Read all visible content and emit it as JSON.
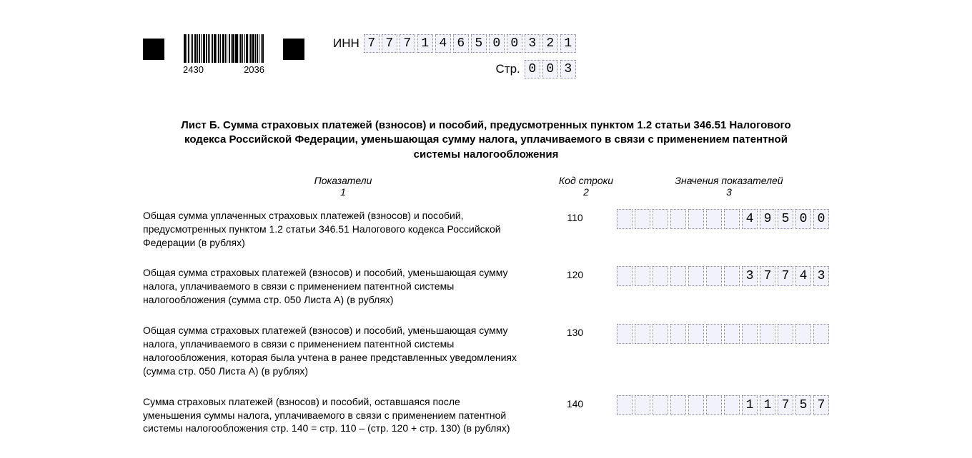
{
  "header": {
    "barcode_numbers": [
      "2430",
      "2036"
    ],
    "inn_label": "ИНН",
    "inn_digits": [
      "7",
      "7",
      "7",
      "1",
      "4",
      "6",
      "5",
      "0",
      "0",
      "3",
      "2",
      "1"
    ],
    "page_label": "Стр.",
    "page_digits": [
      "0",
      "0",
      "3"
    ]
  },
  "title": "Лист Б. Сумма страховых платежей (взносов) и пособий, предусмотренных пунктом 1.2 статьи 346.51 Налогового кодекса Российской Федерации, уменьшающая сумму налога, уплачиваемого в связи с применением патентной системы налогообложения",
  "columns": {
    "c1": "Показатели",
    "c1_sub": "1",
    "c2": "Код строки",
    "c2_sub": "2",
    "c3": "Значения показателей",
    "c3_sub": "3"
  },
  "value_cell_count": 12,
  "rows": [
    {
      "desc": "Общая сумма уплаченных страховых платежей (взносов) и пособий, предусмотренных пунктом 1.2 статьи 346.51 Налогового кодекса Российской Федерации (в рублях)",
      "code": "110",
      "value_digits": [
        "",
        "",
        "",
        "",
        "",
        "",
        "",
        "4",
        "9",
        "5",
        "0",
        "0"
      ]
    },
    {
      "desc": "Общая сумма страховых платежей (взносов) и пособий, уменьшающая сумму налога, уплачиваемого в связи с применением патентной системы налогообложения (сумма стр. 050 Листа А) (в рублях)",
      "code": "120",
      "value_digits": [
        "",
        "",
        "",
        "",
        "",
        "",
        "",
        "3",
        "7",
        "7",
        "4",
        "3"
      ]
    },
    {
      "desc": "Общая сумма страховых платежей (взносов) и пособий, уменьшающая сумму налога, уплачиваемого в связи с применением патентной системы налогообложения, которая была учтена в ранее представленных уведомлениях (сумма стр. 050 Листа А) (в рублях)",
      "code": "130",
      "value_digits": [
        "",
        "",
        "",
        "",
        "",
        "",
        "",
        "",
        "",
        "",
        "",
        ""
      ]
    },
    {
      "desc": "Сумма страховых платежей (взносов) и пособий, оставшаяся после уменьшения суммы налога, уплачиваемого в связи с применением патентной системы налогообложения стр. 140 = стр. 110 – (стр. 120 + стр. 130) (в рублях)",
      "code": "140",
      "value_digits": [
        "",
        "",
        "",
        "",
        "",
        "",
        "",
        "1",
        "1",
        "7",
        "5",
        "7"
      ]
    }
  ],
  "style": {
    "cell_bg": "#f2f2fa",
    "cell_border": "#8a8aa8",
    "text_color": "#000000",
    "background": "#ffffff",
    "barcode_widths": [
      3,
      1,
      2,
      1,
      1,
      3,
      1,
      2,
      1,
      3,
      2,
      1,
      1,
      2,
      3,
      1,
      2,
      1,
      3,
      1,
      1,
      2,
      1,
      3,
      4,
      1,
      2,
      1,
      1,
      3,
      1,
      2,
      3,
      1,
      2,
      1,
      1,
      2
    ],
    "barcode_gaps": [
      1,
      1,
      2,
      1,
      2,
      1,
      1,
      1,
      2,
      1,
      1,
      1,
      2,
      1,
      1,
      1,
      1,
      2,
      1,
      1,
      2,
      1,
      1,
      1,
      1,
      1,
      1,
      2,
      1,
      1,
      1,
      1,
      1,
      1,
      1,
      2,
      1,
      0
    ]
  }
}
